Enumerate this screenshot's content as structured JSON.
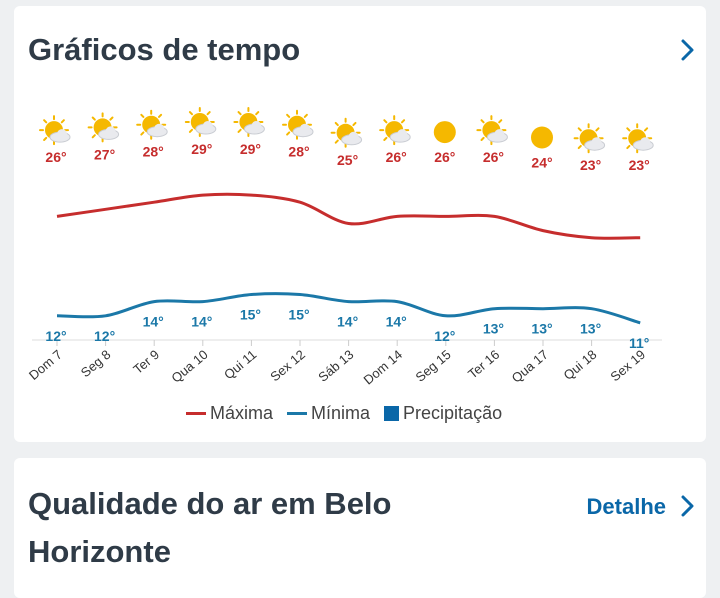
{
  "card1": {
    "title": "Gráficos de tempo"
  },
  "card2": {
    "title": "Qualidade do ar em Belo Horizonte",
    "detail_label": "Detalhe"
  },
  "legend": {
    "max_label": "Máxima",
    "min_label": "Mínima",
    "precip_label": "Precipitação"
  },
  "colors": {
    "max": "#c62d2d",
    "min": "#1b78a8",
    "precip": "#0a67a8",
    "sun": "#f5b800"
  },
  "chart_data": {
    "type": "line",
    "categories": [
      "Dom 7",
      "Seg 8",
      "Ter 9",
      "Qua 10",
      "Qui 11",
      "Sex 12",
      "Sáb 13",
      "Dom 14",
      "Seg 15",
      "Ter 16",
      "Qua 17",
      "Qui 18",
      "Sex 19"
    ],
    "series": [
      {
        "name": "Máxima",
        "values": [
          26,
          27,
          28,
          29,
          29,
          28,
          25,
          26,
          26,
          26,
          24,
          23,
          23
        ]
      },
      {
        "name": "Mínima",
        "values": [
          12,
          12,
          14,
          14,
          15,
          15,
          14,
          14,
          12,
          13,
          13,
          13,
          11
        ]
      }
    ],
    "icons": [
      "partly-sunny-icon",
      "partly-sunny-icon",
      "partly-sunny-icon",
      "partly-sunny-icon",
      "partly-sunny-icon",
      "partly-sunny-icon",
      "partly-sunny-icon",
      "partly-sunny-icon",
      "sun-icon",
      "partly-sunny-icon",
      "sun-icon",
      "partly-sunny-icon",
      "partly-sunny-icon"
    ],
    "unit": "°"
  }
}
